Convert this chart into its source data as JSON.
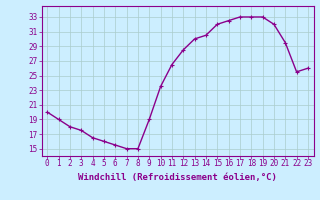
{
  "x": [
    0,
    1,
    2,
    3,
    4,
    5,
    6,
    7,
    8,
    9,
    10,
    11,
    12,
    13,
    14,
    15,
    16,
    17,
    18,
    19,
    20,
    21,
    22,
    23
  ],
  "y": [
    20,
    19,
    18,
    17.5,
    16.5,
    16,
    15.5,
    15,
    15,
    19,
    23.5,
    26.5,
    28.5,
    30,
    30.5,
    32,
    32.5,
    33,
    33,
    33,
    32,
    29.5,
    25.5,
    26
  ],
  "line_color": "#8B008B",
  "marker": "+",
  "marker_size": 3,
  "bg_color": "#cceeff",
  "grid_color": "#aacccc",
  "xlabel": "Windchill (Refroidissement éolien,°C)",
  "xlabel_fontsize": 6.5,
  "ylabel_ticks": [
    15,
    17,
    19,
    21,
    23,
    25,
    27,
    29,
    31,
    33
  ],
  "xtick_labels": [
    "0",
    "1",
    "2",
    "3",
    "4",
    "5",
    "6",
    "7",
    "8",
    "9",
    "10",
    "11",
    "12",
    "13",
    "14",
    "15",
    "16",
    "17",
    "18",
    "19",
    "20",
    "21",
    "22",
    "23"
  ],
  "xlim": [
    -0.5,
    23.5
  ],
  "ylim": [
    14.0,
    34.5
  ],
  "tick_fontsize": 5.5,
  "line_width": 1.0,
  "spine_color": "#8B008B"
}
